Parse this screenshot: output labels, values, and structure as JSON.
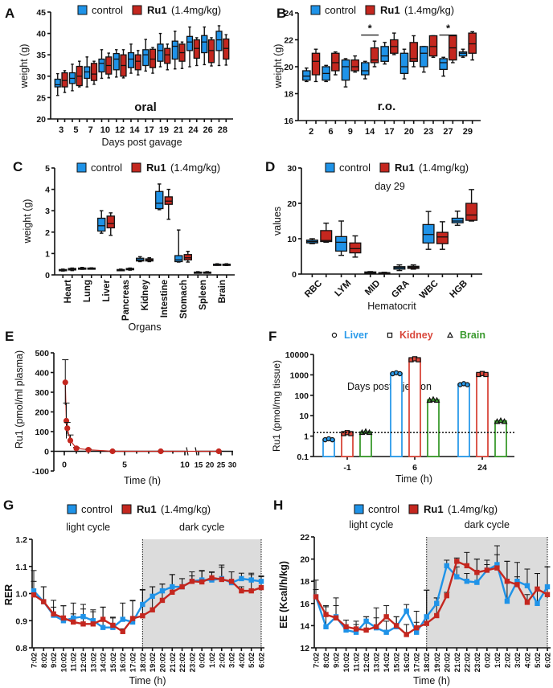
{
  "colors": {
    "control": "#1f93e8",
    "ru1": "#c4271f",
    "liver": "#2b9bea",
    "kidney": "#d9473b",
    "brain": "#3a9a2e",
    "dark_shade": "#dcdcdc"
  },
  "chart_data": [
    {
      "panel": "A",
      "type": "box",
      "series": [
        {
          "name": "control"
        },
        {
          "name": "Ru1",
          "dose": "(1.4mg/kg)"
        }
      ],
      "annotation": "oral",
      "xlabel": "Days post gavage",
      "ylabel": "weight (g)",
      "ylim": [
        20,
        45
      ],
      "yticks": [
        "20",
        "25",
        "30",
        "35",
        "40",
        "45"
      ],
      "categories": [
        "3",
        "5",
        "7",
        "10",
        "12",
        "14",
        "17",
        "19",
        "21",
        "24",
        "26",
        "28"
      ],
      "boxes": {
        "control": [
          [
            25.5,
            27.5,
            28,
            29.3,
            30.6
          ],
          [
            26.6,
            28.3,
            29.5,
            30.8,
            32.8
          ],
          [
            27.5,
            29.5,
            31,
            32.2,
            34.5
          ],
          [
            29.5,
            31,
            33,
            34,
            36.2
          ],
          [
            29.8,
            31.5,
            34,
            35.3,
            36.2
          ],
          [
            30.7,
            32,
            34,
            35.5,
            37.5
          ],
          [
            31.2,
            32.5,
            35,
            36.2,
            38.6
          ],
          [
            32.2,
            33.5,
            36,
            37.5,
            40
          ],
          [
            31.7,
            34,
            37,
            38.2,
            40.5
          ],
          [
            32.2,
            36,
            38,
            39.3,
            41.5
          ],
          [
            32.7,
            35.5,
            38,
            39.5,
            41.5
          ],
          [
            32.5,
            36,
            38.5,
            40.5,
            41.8
          ]
        ],
        "ru1": [
          [
            26.2,
            27.5,
            29,
            30.8,
            31.3
          ],
          [
            27.5,
            27.8,
            30,
            32.3,
            33.5
          ],
          [
            28.1,
            29,
            30.5,
            33,
            33.5
          ],
          [
            29.6,
            30.5,
            32.5,
            34.5,
            35.4
          ],
          [
            29.6,
            30,
            32.5,
            35,
            36.2
          ],
          [
            30.3,
            31.5,
            33.5,
            35,
            36
          ],
          [
            30.7,
            32,
            34,
            36.3,
            36.7
          ],
          [
            31.5,
            33,
            35,
            36.5,
            37.5
          ],
          [
            31.8,
            33.5,
            35.5,
            37.5,
            38
          ],
          [
            32.5,
            34.2,
            36.5,
            38.5,
            39
          ],
          [
            32.4,
            33.2,
            36,
            38.5,
            39
          ],
          [
            32.6,
            34,
            36.5,
            38.7,
            39.7
          ]
        ]
      }
    },
    {
      "panel": "B",
      "type": "box",
      "series": [
        {
          "name": "control"
        },
        {
          "name": "Ru1",
          "dose": "(1.4mg/kg)"
        }
      ],
      "annotation": "r.o.",
      "xlabel": "Days post injection",
      "ylabel": "weight (g)",
      "ylim": [
        16,
        24
      ],
      "yticks": [
        "16",
        "18",
        "20",
        "22",
        "24"
      ],
      "categories": [
        "2",
        "6",
        "9",
        "14",
        "17",
        "20",
        "23",
        "27",
        "29"
      ],
      "significance": [
        {
          "category": "14",
          "label": "*"
        },
        {
          "category": "27",
          "label": "*"
        }
      ],
      "boxes": {
        "control": [
          [
            18.9,
            19.0,
            19.3,
            19.7,
            19.9
          ],
          [
            18.9,
            19.0,
            19.5,
            20.0,
            20.1
          ],
          [
            18.5,
            19.0,
            20.0,
            20.5,
            20.6
          ],
          [
            19.1,
            19.4,
            19.7,
            20.3,
            20.4
          ],
          [
            20.2,
            20.4,
            20.8,
            21.5,
            21.8
          ],
          [
            19.1,
            19.5,
            20.0,
            21.0,
            21.3
          ],
          [
            19.6,
            20.0,
            21.0,
            21.5,
            21.5
          ],
          [
            19.3,
            19.8,
            20.3,
            20.6,
            20.7
          ],
          [
            20.7,
            20.8,
            21.0,
            21.1,
            21.3
          ]
        ],
        "ru1": [
          [
            18.9,
            19.4,
            20.4,
            21.0,
            21.3
          ],
          [
            19.4,
            19.7,
            20.3,
            21.0,
            21.1
          ],
          [
            19.6,
            19.7,
            20.0,
            20.5,
            20.8
          ],
          [
            20.0,
            20.3,
            20.5,
            21.4,
            21.9
          ],
          [
            20.9,
            21.0,
            21.5,
            22.0,
            22.5
          ],
          [
            20.0,
            20.4,
            20.6,
            21.8,
            22.3
          ],
          [
            20.7,
            20.8,
            21.5,
            22.3,
            22.3
          ],
          [
            20.3,
            20.5,
            21.4,
            22.3,
            22.3
          ],
          [
            20.5,
            21.0,
            21.7,
            22.5,
            22.6
          ]
        ]
      }
    },
    {
      "panel": "C",
      "type": "box",
      "series": [
        {
          "name": "control"
        },
        {
          "name": "Ru1",
          "dose": "(1.4mg/kg)"
        }
      ],
      "xlabel": "Organs",
      "ylabel": "weight (g)",
      "ylim": [
        0,
        5
      ],
      "yticks": [
        "0",
        "1",
        "2",
        "3",
        "4",
        "5"
      ],
      "categories": [
        "Heart",
        "Lung",
        "Liver",
        "Pancreas",
        "Kidney",
        "Intestine",
        "Stomach",
        "Spleen",
        "Brain"
      ],
      "boxes": {
        "control": [
          [
            0.18,
            0.2,
            0.23,
            0.25,
            0.27
          ],
          [
            0.26,
            0.28,
            0.3,
            0.32,
            0.35
          ],
          [
            1.95,
            2.05,
            2.3,
            2.65,
            3.0
          ],
          [
            0.2,
            0.22,
            0.23,
            0.25,
            0.27
          ],
          [
            0.62,
            0.65,
            0.7,
            0.78,
            0.85
          ],
          [
            3.05,
            3.1,
            3.35,
            3.9,
            4.25
          ],
          [
            0.6,
            0.62,
            0.7,
            0.9,
            2.1
          ],
          [
            0.1,
            0.11,
            0.12,
            0.13,
            0.15
          ],
          [
            0.45,
            0.46,
            0.48,
            0.5,
            0.52
          ]
        ],
        "ru1": [
          [
            0.2,
            0.23,
            0.26,
            0.3,
            0.32
          ],
          [
            0.27,
            0.28,
            0.3,
            0.32,
            0.33
          ],
          [
            1.85,
            2.2,
            2.4,
            2.75,
            2.9
          ],
          [
            0.22,
            0.24,
            0.27,
            0.3,
            0.32
          ],
          [
            0.62,
            0.65,
            0.7,
            0.75,
            0.8
          ],
          [
            2.6,
            3.3,
            3.45,
            3.65,
            4.0
          ],
          [
            0.6,
            0.7,
            0.8,
            0.95,
            1.1
          ],
          [
            0.09,
            0.1,
            0.12,
            0.13,
            0.15
          ],
          [
            0.44,
            0.45,
            0.48,
            0.5,
            0.52
          ]
        ]
      }
    },
    {
      "panel": "D",
      "type": "box",
      "series": [
        {
          "name": "control"
        },
        {
          "name": "Ru1",
          "dose": "(1.4mg/kg)"
        }
      ],
      "annotation": "day 29",
      "xlabel": "Hematocrit",
      "ylabel": "values",
      "ylim": [
        0,
        30
      ],
      "yticks": [
        "0",
        "10",
        "20",
        "30"
      ],
      "categories": [
        "RBC",
        "LYM",
        "MID",
        "GRA",
        "WBC",
        "HGB"
      ],
      "boxes": {
        "control": [
          [
            8.6,
            8.8,
            9.2,
            9.6,
            10
          ],
          [
            5.3,
            6.5,
            9,
            10.6,
            15
          ],
          [
            0.2,
            0.3,
            0.4,
            0.6,
            0.7
          ],
          [
            1,
            1.4,
            1.8,
            2.1,
            2.6
          ],
          [
            7,
            8.8,
            11.2,
            14,
            17.7
          ],
          [
            13.8,
            14.5,
            15,
            15.8,
            17.8
          ]
        ],
        "ru1": [
          [
            9,
            9.2,
            9.5,
            12.3,
            14.4
          ],
          [
            4.8,
            6,
            7.2,
            8.8,
            10.8
          ],
          [
            0.1,
            0.2,
            0.3,
            0.4,
            0.5
          ],
          [
            1.4,
            1.6,
            1.9,
            2.2,
            2.6
          ],
          [
            7,
            8.6,
            10.5,
            11.8,
            14.8
          ],
          [
            15,
            15.2,
            16.7,
            20,
            23.9
          ]
        ]
      }
    },
    {
      "panel": "E",
      "type": "line",
      "xlabel": "Time (h)",
      "ylabel": "Ru1 (pmol/ml plasma)",
      "ylim": [
        -100,
        500
      ],
      "yticks": [
        "-100",
        "0",
        "100",
        "200",
        "300",
        "400",
        "500"
      ],
      "xticks_left": [
        "0",
        "5",
        "10"
      ],
      "xticks_right": [
        "15",
        "20",
        "25",
        "30"
      ],
      "x": [
        0.083,
        0.167,
        0.25,
        0.5,
        1,
        2,
        4,
        8,
        24
      ],
      "y": [
        350,
        155,
        117,
        55,
        15,
        8,
        0,
        0,
        0
      ],
      "error": [
        115,
        90,
        30,
        28,
        5,
        3,
        1,
        1,
        1
      ]
    },
    {
      "panel": "F",
      "type": "bar",
      "yscale": "log",
      "xlabel": "Time (h)",
      "ylabel": "Ru1 (pmol/mg tissue)",
      "ylim": [
        0.1,
        10000
      ],
      "yticks": [
        "0.1",
        "1",
        "10",
        "100",
        "1000",
        "10000"
      ],
      "categories": [
        "-1",
        "6",
        "24"
      ],
      "detection_limit": 1.5,
      "series": [
        {
          "name": "Liver",
          "marker": "circle",
          "values": [
            0.7,
            1200,
            350
          ]
        },
        {
          "name": "Kidney",
          "marker": "square",
          "values": [
            1.4,
            5800,
            1100
          ]
        },
        {
          "name": "Brain",
          "marker": "triangle",
          "values": [
            1.6,
            60,
            5.5
          ]
        }
      ]
    },
    {
      "panel": "G",
      "type": "line",
      "series": [
        {
          "name": "control",
          "values": [
            1.01,
            0.97,
            0.92,
            0.9,
            0.91,
            0.915,
            0.9,
            0.875,
            0.875,
            0.905,
            0.895,
            0.96,
            0.99,
            1.01,
            1.025,
            1.025,
            1.045,
            1.05,
            1.05,
            1.055,
            1.04,
            1.055,
            1.05,
            1.045
          ],
          "error": [
            0.075,
            0.055,
            0.055,
            0.055,
            0.055,
            0.045,
            0.04,
            0.075,
            0.035,
            0.06,
            0.08,
            0.055,
            0.035,
            0.025,
            0.045,
            0.03,
            0.035,
            0.035,
            0.03,
            0.05,
            0.04,
            0.02,
            0.025,
            0.02
          ]
        },
        {
          "name": "Ru1",
          "dose": "(1.4mg/kg)",
          "values": [
            0.995,
            0.97,
            0.925,
            0.91,
            0.895,
            0.888,
            0.888,
            0.905,
            0.883,
            0.86,
            0.908,
            0.918,
            0.94,
            0.975,
            1.005,
            1.025,
            1.045,
            1.043,
            1.058,
            1.052,
            1.045,
            1.01,
            1.01,
            1.022
          ],
          "error": [
            0.05,
            0.055,
            0.025,
            0.045,
            0.03,
            0.055,
            0.045,
            0.045,
            0.03,
            0.01,
            0.065,
            0.095,
            0.085,
            0.06,
            0.065,
            0.03,
            0.02,
            0.04,
            0.02,
            0.045,
            0.035,
            0.015,
            0.06,
            0.04
          ]
        }
      ],
      "light_label": "light cycle",
      "dark_label": "dark cycle",
      "dark_start": "18:02",
      "xlabel": "Time (h)",
      "ylabel": "RER",
      "ylim": [
        0.8,
        1.2
      ],
      "yticks": [
        "0.8",
        "0.9",
        "1.0",
        "1.1",
        "1.2"
      ],
      "categories": [
        "7:02",
        "8:02",
        "9:02",
        "10:02",
        "11:02",
        "12:02",
        "13:02",
        "14:02",
        "15:02",
        "16:02",
        "17:02",
        "18:02",
        "19:02",
        "20:02",
        "21:02",
        "22:02",
        "23:02",
        "0:02",
        "1:02",
        "2:02",
        "3:02",
        "4:02",
        "5:02",
        "6:02"
      ]
    },
    {
      "panel": "H",
      "type": "line",
      "series": [
        {
          "name": "control",
          "values": [
            16.6,
            13.9,
            14.8,
            13.6,
            13.4,
            14.4,
            13.8,
            13.4,
            13.9,
            15.3,
            13.4,
            14.8,
            16.0,
            19.4,
            18.4,
            18.0,
            17.9,
            19.0,
            19.5,
            16.2,
            18.0,
            17.6,
            16.0,
            17.5
          ],
          "error": [
            1.5,
            1.9,
            1.7,
            0.9,
            0.7,
            0.4,
            1.8,
            1.0,
            0.9,
            0.6,
            1.9,
            2.4,
            0.5,
            0.5,
            0.9,
            0.7,
            2.1,
            0.9,
            1.7,
            3.6,
            1.7,
            1.5,
            2.7,
            1.8
          ]
        },
        {
          "name": "Ru1",
          "dose": "(1.4mg/kg)",
          "values": [
            16.6,
            15.0,
            14.7,
            13.9,
            13.7,
            13.6,
            13.9,
            14.8,
            14.0,
            13.2,
            13.8,
            14.2,
            14.9,
            16.7,
            19.8,
            19.4,
            18.8,
            19.0,
            19.2,
            18.0,
            17.7,
            16.1,
            17.3,
            16.8
          ],
          "error": [
            0.65,
            0.7,
            1.1,
            0.6,
            0.7,
            1.2,
            0.8,
            1.0,
            0.8,
            0.9,
            0.5,
            3.0,
            1.6,
            0.3,
            0.3,
            1.2,
            1.2,
            0.5,
            1.2,
            1.8,
            0.7,
            0.7,
            1.4,
            2.5
          ]
        }
      ],
      "light_label": "light cycle",
      "dark_label": "dark cycle",
      "dark_start": "18:02",
      "xlabel": "Time (h)",
      "ylabel": "EE (Kcal/h/kg)",
      "ylim": [
        12,
        22
      ],
      "yticks": [
        "12",
        "14",
        "16",
        "18",
        "20",
        "22"
      ],
      "categories": [
        "7:02",
        "8:02",
        "9:02",
        "10:02",
        "11:02",
        "12:02",
        "13:02",
        "14:02",
        "15:02",
        "16:02",
        "17:02",
        "18:02",
        "19:02",
        "20:02",
        "21:02",
        "22:02",
        "23:02",
        "0:02",
        "1:02",
        "2:02",
        "3:02",
        "4:02",
        "5:02",
        "6:02"
      ]
    }
  ]
}
